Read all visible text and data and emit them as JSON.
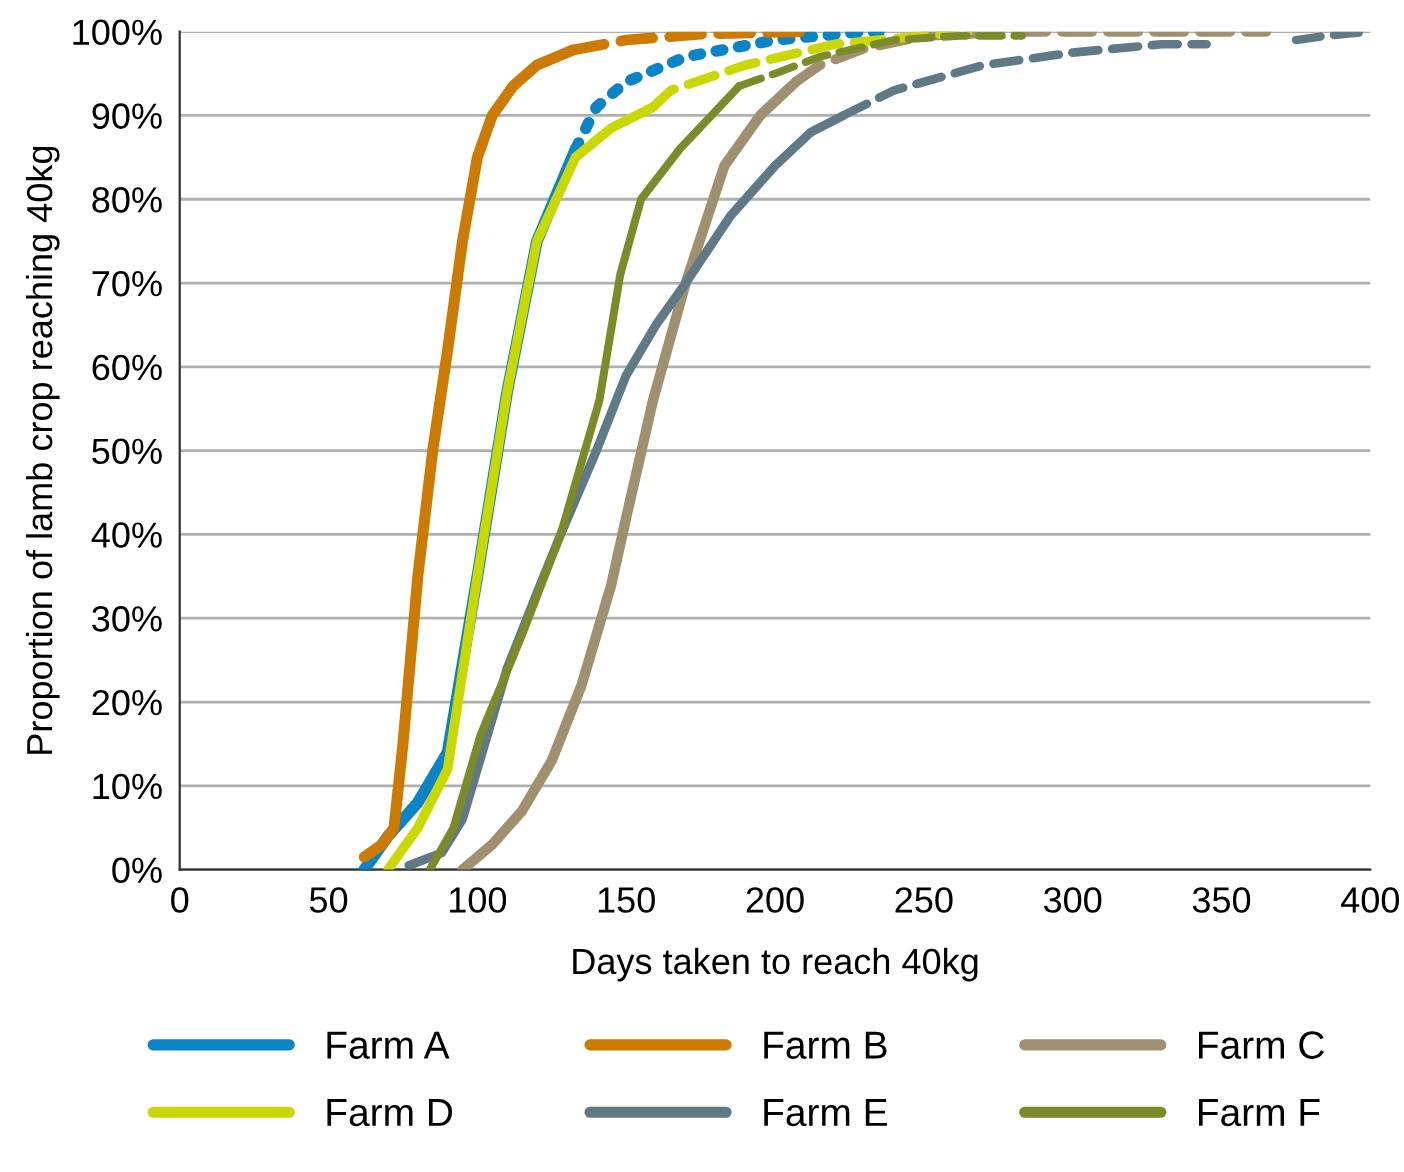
{
  "chart_data": {
    "type": "line",
    "xlabel": "Days taken to reach 40kg",
    "ylabel": "Proportion of lamb crop reaching 40kg",
    "xlim": [
      0,
      400
    ],
    "xticks": [
      0,
      50,
      100,
      150,
      200,
      250,
      300,
      350,
      400
    ],
    "ylim": [
      0,
      100
    ],
    "yticks": [
      {
        "value": 0,
        "label": "0%"
      },
      {
        "value": 10,
        "label": "10%"
      },
      {
        "value": 20,
        "label": "20%"
      },
      {
        "value": 30,
        "label": "30%"
      },
      {
        "value": 40,
        "label": "40%"
      },
      {
        "value": 50,
        "label": "50%"
      },
      {
        "value": 60,
        "label": "60%"
      },
      {
        "value": 70,
        "label": "70%"
      },
      {
        "value": 80,
        "label": "80%"
      },
      {
        "value": 90,
        "label": "90%"
      },
      {
        "value": 100,
        "label": "100%"
      }
    ],
    "grid": "y",
    "legend": "bottom",
    "marker": "none",
    "series": [
      {
        "name": "Farm A",
        "color": "#0a84c6",
        "line_style": "solid",
        "x": [
          62,
          70,
          80,
          90,
          100,
          110,
          120,
          133
        ],
        "values": [
          0,
          4,
          8,
          14,
          35,
          57,
          75,
          86
        ]
      },
      {
        "color": "#0a84c6",
        "line_style": "dotted",
        "x": [
          133,
          140,
          150,
          170,
          200,
          230,
          235
        ],
        "values": [
          86,
          91,
          94,
          97,
          99,
          100,
          100
        ]
      },
      {
        "name": "Farm B",
        "color": "#cc7a00",
        "line_style": "solid",
        "x": [
          62,
          68,
          72,
          75,
          80,
          85,
          90,
          95,
          100,
          105,
          112,
          120,
          132
        ],
        "values": [
          1.5,
          3,
          5,
          15,
          35,
          50,
          62,
          75,
          85,
          90,
          93.5,
          96,
          97.8
        ]
      },
      {
        "color": "#cc7a00",
        "line_style": "dashed",
        "x": [
          132,
          150,
          175,
          210
        ],
        "values": [
          97.8,
          99,
          99.7,
          100
        ]
      },
      {
        "name": "Farm C",
        "color": "#9f9070",
        "line_style": "solid",
        "x": [
          95,
          105,
          115,
          125,
          135,
          145,
          150,
          159,
          170,
          183,
          195,
          207
        ],
        "values": [
          0,
          3,
          7,
          13,
          22,
          34,
          42,
          56,
          70,
          84,
          90,
          94
        ]
      },
      {
        "color": "#9f9070",
        "line_style": "dashed",
        "x": [
          207,
          215,
          230,
          250,
          280,
          365
        ],
        "values": [
          94,
          96,
          98,
          99.5,
          100,
          100
        ]
      },
      {
        "name": "Farm D",
        "color": "#c9d800",
        "line_style": "solid",
        "x": [
          70,
          80,
          90,
          100,
          110,
          120,
          133,
          145,
          159
        ],
        "values": [
          0,
          5,
          12,
          35,
          57,
          75,
          85,
          88.5,
          91
        ]
      },
      {
        "color": "#c9d800",
        "line_style": "dashed",
        "x": [
          159,
          165,
          190,
          220,
          250,
          265
        ],
        "values": [
          91,
          93,
          96,
          98.5,
          99.5,
          100
        ]
      },
      {
        "name": "Farm E",
        "color": "#5f7a86",
        "line_style": "solid",
        "x": [
          77,
          88,
          95,
          100,
          110,
          120,
          128,
          140,
          150,
          160,
          170,
          185,
          200,
          212,
          223
        ],
        "values": [
          0.5,
          2,
          6,
          12,
          24,
          33,
          40,
          50,
          59,
          65,
          70,
          78,
          84,
          88,
          90
        ]
      },
      {
        "color": "#5f7a86",
        "line_style": "dashed",
        "x": [
          223,
          240,
          270,
          300,
          330,
          345
        ],
        "values": [
          90,
          93,
          96,
          97.5,
          98.5,
          98.5
        ]
      },
      {
        "color": "#5f7a86",
        "line_style": "dashed",
        "x": [
          375,
          385,
          400
        ],
        "values": [
          99,
          99.5,
          100
        ]
      },
      {
        "name": "Farm F",
        "color": "#7c8a2a",
        "line_style": "solid",
        "x": [
          84,
          92,
          101,
          115,
          128,
          141,
          148,
          155,
          168,
          188
        ],
        "values": [
          0,
          5,
          16,
          28,
          40,
          56,
          71,
          80,
          86,
          93.5
        ]
      },
      {
        "color": "#7c8a2a",
        "line_style": "dashed",
        "x": [
          188,
          200,
          215,
          240,
          262,
          283
        ],
        "values": [
          93.5,
          95,
          97,
          99,
          99.5,
          99.5
        ]
      }
    ]
  }
}
